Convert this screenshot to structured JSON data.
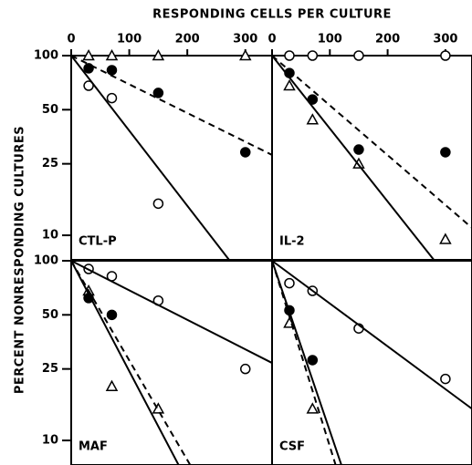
{
  "figure": {
    "xlabel": "RESPONDING CELLS PER CULTURE",
    "ylabel": "PERCENT NONRESPONDING CULTURES"
  },
  "chart_data": [
    {
      "type": "scatter",
      "title": "CTL-P",
      "log_y": true,
      "xlim": [
        0,
        346
      ],
      "ylim": [
        7.3,
        100
      ],
      "xticks": [
        0,
        100,
        200,
        300
      ],
      "yticks": [
        100,
        50,
        25,
        10
      ],
      "series": [
        {
          "marker": "triangle-open",
          "x": [
            30,
            70,
            150,
            300
          ],
          "values": [
            100,
            100,
            100,
            100
          ]
        },
        {
          "marker": "circle-filled",
          "x": [
            30,
            70,
            150,
            300
          ],
          "values": [
            85,
            83,
            62,
            29
          ]
        },
        {
          "marker": "circle-open",
          "x": [
            30,
            70,
            150
          ],
          "values": [
            68,
            58,
            15
          ]
        },
        {
          "line": "solid",
          "x": [
            0,
            272
          ],
          "values": [
            100,
            7.3
          ]
        },
        {
          "line": "dashed",
          "x": [
            0,
            346
          ],
          "values": [
            100,
            28
          ]
        }
      ]
    },
    {
      "type": "scatter",
      "title": "IL-2",
      "log_y": true,
      "xlim": [
        0,
        346
      ],
      "ylim": [
        7.3,
        100
      ],
      "xticks": [
        0,
        100,
        200,
        300
      ],
      "series": [
        {
          "marker": "circle-open",
          "x": [
            30,
            70,
            150,
            300
          ],
          "values": [
            100,
            100,
            100,
            100
          ]
        },
        {
          "marker": "circle-filled",
          "x": [
            30,
            70,
            150,
            300
          ],
          "values": [
            80,
            57,
            30,
            29
          ]
        },
        {
          "marker": "triangle-open",
          "x": [
            30,
            70,
            150,
            300
          ],
          "values": [
            68,
            44,
            25,
            9.5
          ]
        },
        {
          "line": "solid",
          "x": [
            0,
            280
          ],
          "values": [
            100,
            7.3
          ]
        },
        {
          "line": "dashed",
          "x": [
            0,
            346
          ],
          "values": [
            100,
            11
          ]
        }
      ]
    },
    {
      "type": "scatter",
      "title": "MAF",
      "log_y": true,
      "xlim": [
        0,
        346
      ],
      "ylim": [
        7.3,
        100
      ],
      "yticks": [
        100,
        50,
        25,
        10
      ],
      "series": [
        {
          "marker": "circle-open",
          "x": [
            30,
            70,
            150,
            300
          ],
          "values": [
            90,
            82,
            60,
            25
          ]
        },
        {
          "marker": "triangle-open",
          "x": [
            30,
            70,
            150
          ],
          "values": [
            68,
            20,
            15
          ]
        },
        {
          "marker": "circle-filled",
          "x": [
            30,
            70
          ],
          "values": [
            62,
            50
          ]
        },
        {
          "line": "solid",
          "x": [
            0,
            346
          ],
          "values": [
            100,
            27
          ]
        },
        {
          "line": "solid",
          "x": [
            0,
            185
          ],
          "values": [
            100,
            7.3
          ]
        },
        {
          "line": "dashed",
          "x": [
            0,
            205
          ],
          "values": [
            100,
            7.3
          ]
        }
      ]
    },
    {
      "type": "scatter",
      "title": "CSF",
      "log_y": true,
      "xlim": [
        0,
        346
      ],
      "ylim": [
        7.3,
        100
      ],
      "series": [
        {
          "marker": "circle-open",
          "x": [
            30,
            70,
            150,
            300
          ],
          "values": [
            75,
            68,
            42,
            22
          ]
        },
        {
          "marker": "circle-filled",
          "x": [
            30,
            70
          ],
          "values": [
            53,
            28
          ]
        },
        {
          "marker": "triangle-open",
          "x": [
            30,
            70
          ],
          "values": [
            45,
            15
          ]
        },
        {
          "line": "solid",
          "x": [
            0,
            346
          ],
          "values": [
            100,
            15
          ]
        },
        {
          "line": "solid",
          "x": [
            0,
            120
          ],
          "values": [
            100,
            7.3
          ]
        },
        {
          "line": "dashed",
          "x": [
            0,
            110
          ],
          "values": [
            100,
            7.3
          ]
        }
      ]
    }
  ]
}
